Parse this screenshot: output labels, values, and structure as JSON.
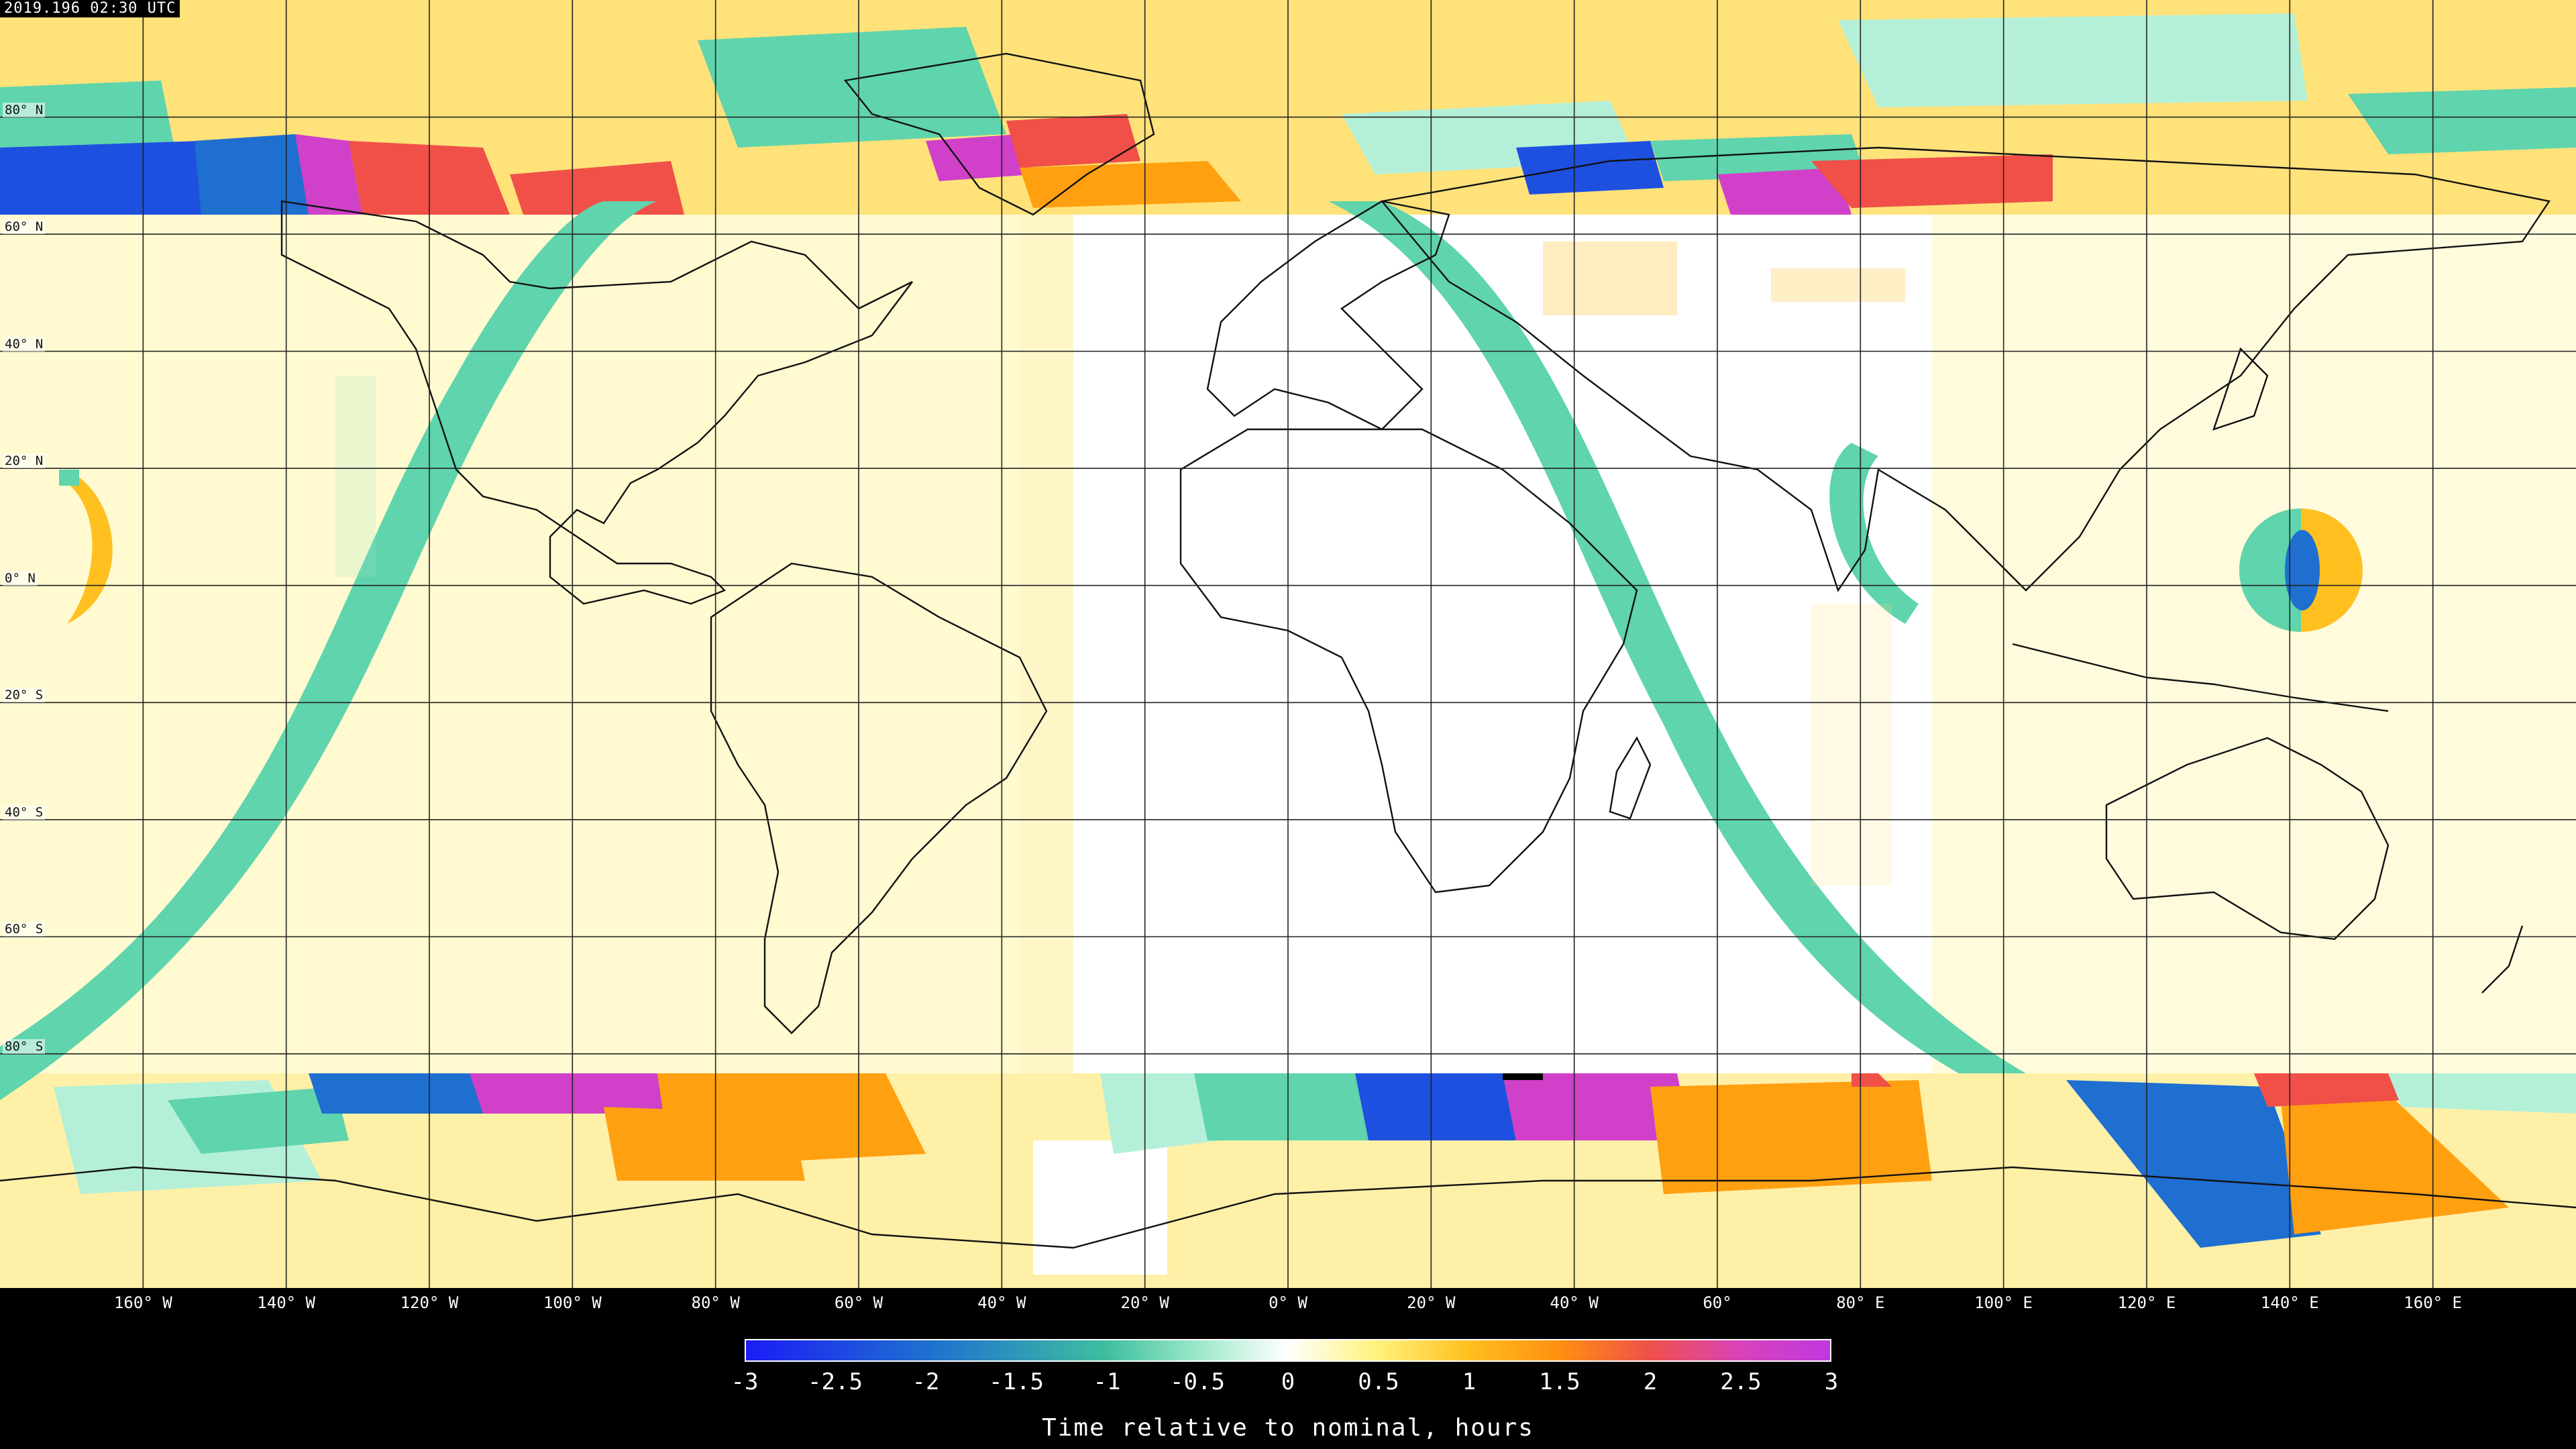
{
  "timestamp": "2019.196 02:30 UTC",
  "latitude_labels": [
    "80° N",
    "60° N",
    "40° N",
    "20° N",
    "0° N",
    "20° S",
    "40° S",
    "60° S",
    "80° S"
  ],
  "longitude_labels": [
    "160° W",
    "140° W",
    "120° W",
    "100° W",
    "80° W",
    "60° W",
    "40° W",
    "20° W",
    "0° W",
    "20° W",
    "40° W",
    "60°",
    "80° E",
    "100° E",
    "120° E",
    "140° E",
    "160° E"
  ],
  "colorbar": {
    "ticks": [
      "-3",
      "-2.5",
      "-2",
      "-1.5",
      "-1",
      "-0.5",
      "0",
      "0.5",
      "1",
      "1.5",
      "2",
      "2.5",
      "3"
    ],
    "title": "Time relative to nominal, hours"
  },
  "colors": {
    "neg3": "#1c1cf5",
    "neg2": "#1e6fd0",
    "neg1": "#5fd4ad",
    "neg05": "#b4f0d8",
    "zero": "#ffffff",
    "pos05": "#fff6a8",
    "pos1": "#ffd43a",
    "pos15": "#ffa010",
    "pos2": "#f05048",
    "pos3": "#d040c8"
  }
}
